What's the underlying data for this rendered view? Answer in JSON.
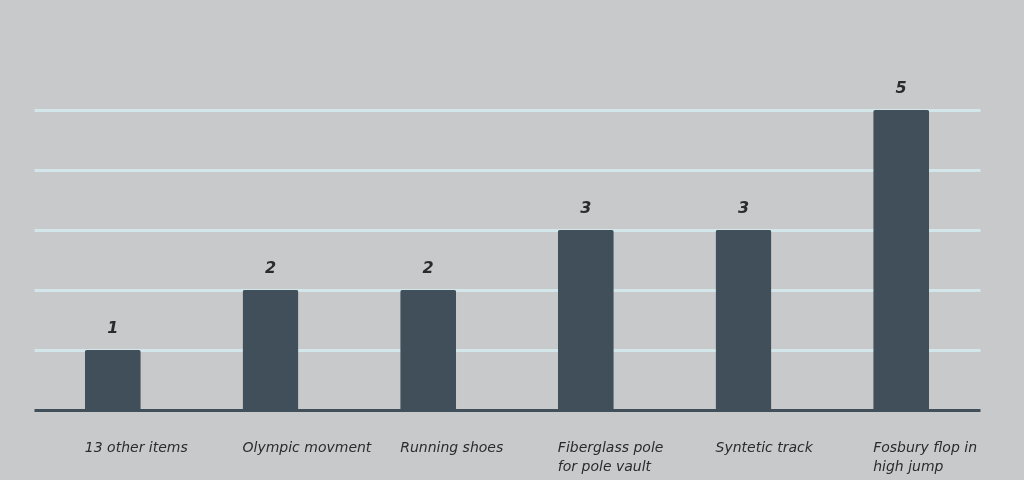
{
  "chart_data": {
    "type": "bar",
    "categories": [
      "13 other items",
      "Olympic movment",
      "Running shoes",
      "Fiberglass pole for pole vault",
      "Syntetic track",
      "Fosbury flop in high jump"
    ],
    "values": [
      1,
      2,
      2,
      3,
      3,
      5
    ],
    "color": "#414f5a",
    "ylim": [
      0,
      5
    ],
    "yticks": [
      {
        "value": 1,
        "label": null
      },
      {
        "value": 2,
        "label": null
      },
      {
        "value": 3,
        "label": null
      },
      {
        "value": 4,
        "label": null
      },
      {
        "value": 5,
        "label": null
      }
    ],
    "grid": "y",
    "tick_labels": "x",
    "data_labels": true
  }
}
